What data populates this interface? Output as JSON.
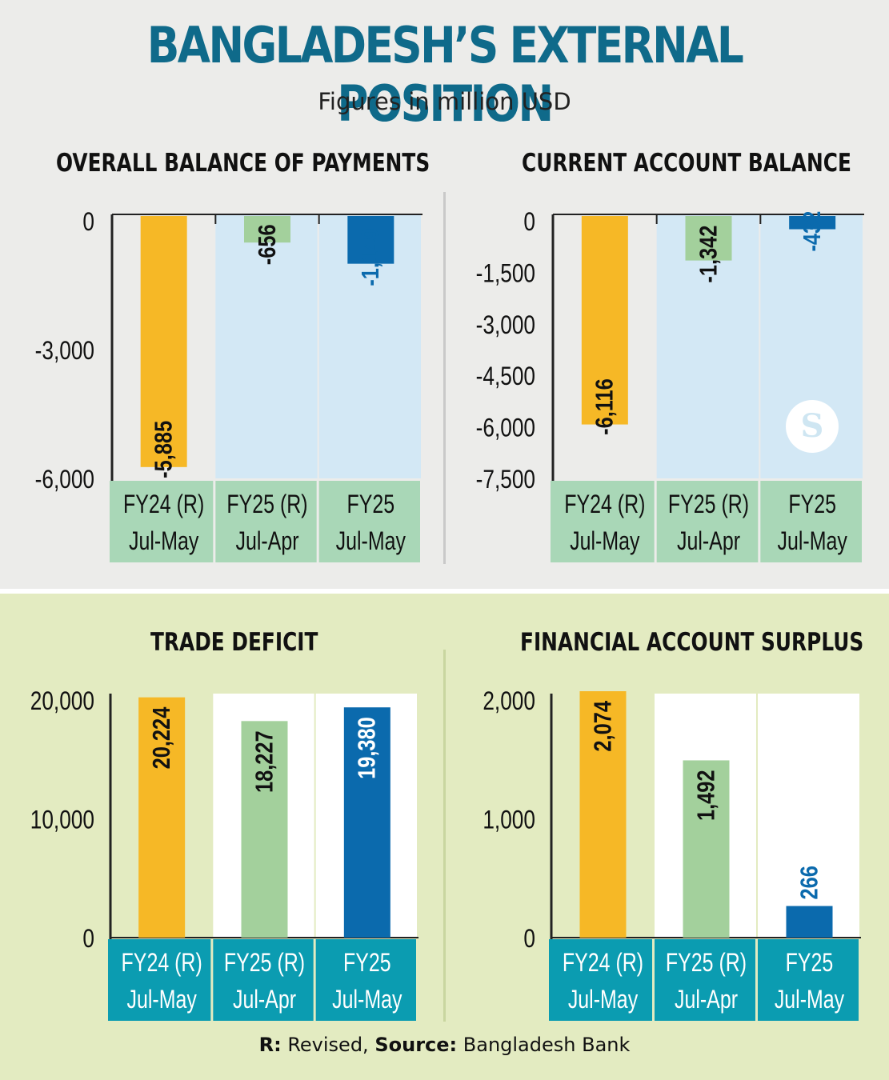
{
  "title": "BANGLADESH’S EXTERNAL POSITION",
  "subtitle": "Figures in million USD",
  "footer": {
    "r_label": "R:",
    "r_text": "Revised,",
    "source_label": "Source:",
    "source_text": "Bangladesh Bank"
  },
  "colors": {
    "fy24r": "#f6b826",
    "fy25r": "#a3d09c",
    "fy25": "#0b6aad",
    "title": "#0f6a8a"
  },
  "logo": {
    "text": "S",
    "icon": "the-daily-star-logo-icon"
  },
  "chart_data": [
    {
      "id": "bop",
      "type": "bar",
      "title": "OVERALL BALANCE OF PAYMENTS",
      "categories": [
        {
          "line1": "FY24 (R)",
          "line2": "Jul-May"
        },
        {
          "line1": "FY25 (R)",
          "line2": "Jul-Apr"
        },
        {
          "line1": "FY25",
          "line2": "Jul-May"
        }
      ],
      "values": [
        -5885,
        -656,
        -1149
      ],
      "value_labels": [
        "-5,885",
        "-656",
        "-1,149"
      ],
      "label_colors": [
        "#111111",
        "#111111",
        "#0b6aad"
      ],
      "yticks": [
        0,
        -3000,
        -6000
      ],
      "ytick_labels": [
        "0",
        "-3,000",
        "-6,000"
      ],
      "ylim": [
        -6000,
        0
      ]
    },
    {
      "id": "cab",
      "type": "bar",
      "title": "CURRENT ACCOUNT BALANCE",
      "categories": [
        {
          "line1": "FY24 (R)",
          "line2": "Jul-May"
        },
        {
          "line1": "FY25 (R)",
          "line2": "Jul-Apr"
        },
        {
          "line1": "FY25",
          "line2": "Jul-May"
        }
      ],
      "values": [
        -6116,
        -1342,
        -432
      ],
      "value_labels": [
        "-6,116",
        "-1,342",
        "-432"
      ],
      "label_colors": [
        "#111111",
        "#111111",
        "#0b6aad"
      ],
      "yticks": [
        0,
        -1500,
        -3000,
        -4500,
        -6000,
        -7500
      ],
      "ytick_labels": [
        "0",
        "-1,500",
        "-3,000",
        "-4,500",
        "-6,000",
        "-7,500"
      ],
      "ylim": [
        -7500,
        0
      ]
    },
    {
      "id": "trade",
      "type": "bar",
      "title": "TRADE DEFICIT",
      "categories": [
        {
          "line1": "FY24 (R)",
          "line2": "Jul-May"
        },
        {
          "line1": "FY25 (R)",
          "line2": "Jul-Apr"
        },
        {
          "line1": "FY25",
          "line2": "Jul-May"
        }
      ],
      "values": [
        20224,
        18227,
        19380
      ],
      "value_labels": [
        "20,224",
        "18,227",
        "19,380"
      ],
      "label_colors": [
        "#111111",
        "#111111",
        "#ffffff"
      ],
      "yticks": [
        0,
        10000,
        20000
      ],
      "ytick_labels": [
        "0",
        "10,000",
        "20,000"
      ],
      "ylim": [
        0,
        20000
      ]
    },
    {
      "id": "fas",
      "type": "bar",
      "title": "FINANCIAL ACCOUNT SURPLUS",
      "categories": [
        {
          "line1": "FY24 (R)",
          "line2": "Jul-May"
        },
        {
          "line1": "FY25 (R)",
          "line2": "Jul-Apr"
        },
        {
          "line1": "FY25",
          "line2": "Jul-May"
        }
      ],
      "values": [
        2074,
        1492,
        266
      ],
      "value_labels": [
        "2,074",
        "1,492",
        "266"
      ],
      "label_colors": [
        "#111111",
        "#111111",
        "#0b6aad"
      ],
      "yticks": [
        0,
        1000,
        2000
      ],
      "ytick_labels": [
        "0",
        "1,000",
        "2,000"
      ],
      "ylim": [
        0,
        2000
      ]
    }
  ]
}
